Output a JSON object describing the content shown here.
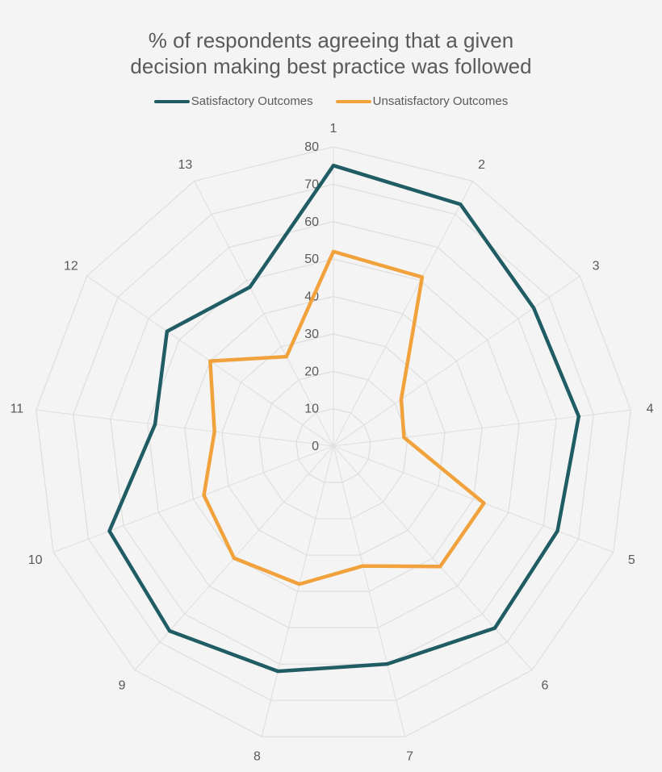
{
  "chart_data": {
    "type": "radar",
    "title_lines": [
      "% of respondents agreeing that a given",
      "decision making best practice was followed"
    ],
    "categories": [
      "1",
      "2",
      "3",
      "4",
      "5",
      "6",
      "7",
      "8",
      "9",
      "10",
      "11",
      "12",
      "13"
    ],
    "rlim": [
      0,
      80
    ],
    "r_ticks": [
      "0",
      "10",
      "20",
      "30",
      "40",
      "50",
      "60",
      "70",
      "80"
    ],
    "legend_position": "top",
    "grid": true,
    "series": [
      {
        "name": "Satisfactory Outcomes",
        "color": "#1f5c63",
        "values": [
          75,
          73,
          65,
          66,
          64,
          65,
          60,
          62,
          66,
          64,
          48,
          54,
          48
        ]
      },
      {
        "name": "Unsatisfactory Outcomes",
        "color": "#f2a23c",
        "values": [
          52,
          51,
          22,
          19,
          43,
          43,
          33,
          38,
          40,
          37,
          32,
          40,
          27
        ]
      }
    ]
  }
}
